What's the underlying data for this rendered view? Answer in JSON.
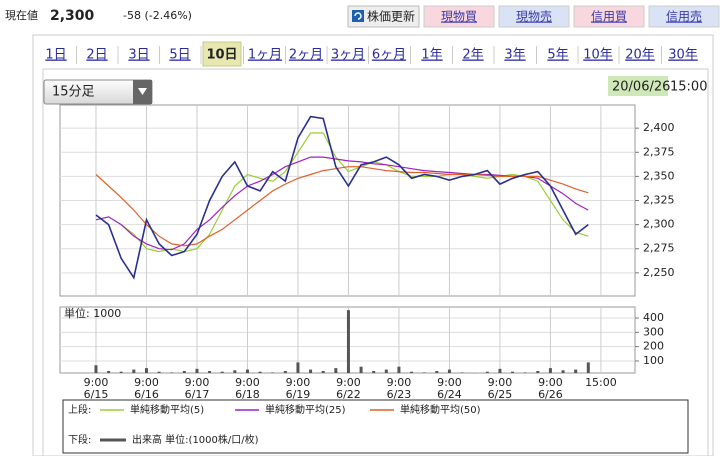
{
  "header": {
    "label": "現在値",
    "price": "2,300",
    "change": "-58 (-2.46%)",
    "refresh": "株価更新",
    "buttons": [
      "現物買",
      "現物売",
      "信用買",
      "信用売"
    ]
  },
  "tabs": {
    "items": [
      "1日",
      "2日",
      "3日",
      "5日",
      "10日",
      "1ヶ月",
      "2ヶ月",
      "3ヶ月",
      "6ヶ月",
      "1年",
      "2年",
      "3年",
      "5年",
      "10年",
      "20年",
      "30年"
    ],
    "selected": 4
  },
  "controls": {
    "interval": "15分足",
    "date": "20/06/26",
    "time": "15:00"
  },
  "chart_data": [
    {
      "type": "line",
      "legend_label": "上段:",
      "color": "#2b2f8f",
      "values": [
        2310,
        2300,
        2265,
        2245,
        2305,
        2280,
        2268,
        2272,
        2290,
        2325,
        2350,
        2365,
        2340,
        2335,
        2355,
        2345,
        2390,
        2412,
        2410,
        2360,
        2340,
        2362,
        2365,
        2370,
        2362,
        2348,
        2352,
        2350,
        2346,
        2350,
        2352,
        2356,
        2342,
        2348,
        2352,
        2355,
        2340,
        2315,
        2290,
        2300
      ],
      "series": [
        {
          "name": "単純移動平均(5)",
          "color": "#9acd32",
          "values": [
            null,
            null,
            2300,
            2290,
            2275,
            2272,
            2275,
            2272,
            2275,
            2290,
            2315,
            2340,
            2352,
            2348,
            2345,
            2355,
            2375,
            2395,
            2395,
            2370,
            2355,
            2360,
            2365,
            2362,
            2355,
            2350,
            2350,
            2350,
            2352,
            2352,
            2350,
            2348,
            2350,
            2352,
            2350,
            2345,
            2325,
            2305,
            2292,
            2288
          ]
        },
        {
          "name": "単純移動平均(25)",
          "color": "#a020c0",
          "values": [
            2305,
            2308,
            2300,
            2288,
            2280,
            2275,
            2274,
            2280,
            2295,
            2305,
            2318,
            2330,
            2340,
            2345,
            2352,
            2360,
            2365,
            2370,
            2370,
            2368,
            2366,
            2365,
            2363,
            2362,
            2360,
            2358,
            2356,
            2355,
            2354,
            2353,
            2352,
            2352,
            2351,
            2350,
            2350,
            2348,
            2340,
            2332,
            2322,
            2315
          ]
        },
        {
          "name": "単純移動平均(50)",
          "color": "#e0602a",
          "values": [
            2352,
            2340,
            2328,
            2315,
            2300,
            2288,
            2280,
            2278,
            2280,
            2288,
            2295,
            2305,
            2315,
            2325,
            2335,
            2342,
            2348,
            2352,
            2356,
            2358,
            2360,
            2360,
            2358,
            2356,
            2355,
            2354,
            2354,
            2353,
            2352,
            2352,
            2352,
            2351,
            2350,
            2350,
            2350,
            2350,
            2346,
            2342,
            2337,
            2333
          ]
        }
      ],
      "xlim": [
        -2.85,
        42.7
      ],
      "xticks": [
        {
          "value": 0,
          "label": "9:00"
        },
        {
          "value": 4,
          "label": "9:00"
        },
        {
          "value": 8,
          "label": "9:00"
        },
        {
          "value": 12,
          "label": "9:00"
        },
        {
          "value": 16,
          "label": "9:00"
        },
        {
          "value": 20,
          "label": "9:00"
        },
        {
          "value": 24,
          "label": "9:00"
        },
        {
          "value": 28,
          "label": "9:00"
        },
        {
          "value": 32,
          "label": "9:00"
        },
        {
          "value": 36,
          "label": "9:00"
        },
        {
          "value": 40,
          "label": "15:00"
        }
      ],
      "xtick_dates": [
        "6/15",
        "6/16",
        "6/17",
        "6/18",
        "6/19",
        "6/22",
        "6/23",
        "6/24",
        "6/25",
        "6/26"
      ],
      "ylim": [
        2226,
        2424
      ],
      "yticks": [
        {
          "value": 2250,
          "label": "2,250"
        },
        {
          "value": 2275,
          "label": "2,275"
        },
        {
          "value": 2300,
          "label": "2,300"
        },
        {
          "value": 2325,
          "label": "2,325"
        },
        {
          "value": 2350,
          "label": "2,350"
        },
        {
          "value": 2375,
          "label": "2,375"
        },
        {
          "value": 2400,
          "label": "2,400"
        }
      ],
      "grid": true
    },
    {
      "type": "bar",
      "title": "単位: 1000",
      "legend_label": "下段:",
      "series": [
        {
          "name": "出来高 単位:(1000株/口/枚)",
          "color": "#555555",
          "values": [
            70,
            30,
            25,
            40,
            50,
            25,
            20,
            30,
            45,
            30,
            25,
            35,
            40,
            25,
            20,
            30,
            90,
            40,
            30,
            50,
            455,
            60,
            30,
            40,
            60,
            25,
            20,
            30,
            40,
            20,
            15,
            25,
            45,
            25,
            20,
            30,
            50,
            35,
            40,
            90
          ]
        }
      ],
      "xlim": [
        -2.85,
        42.7
      ],
      "ylim": [
        16,
        477
      ],
      "yticks": [
        100,
        200,
        300,
        400
      ],
      "grid": true
    }
  ]
}
